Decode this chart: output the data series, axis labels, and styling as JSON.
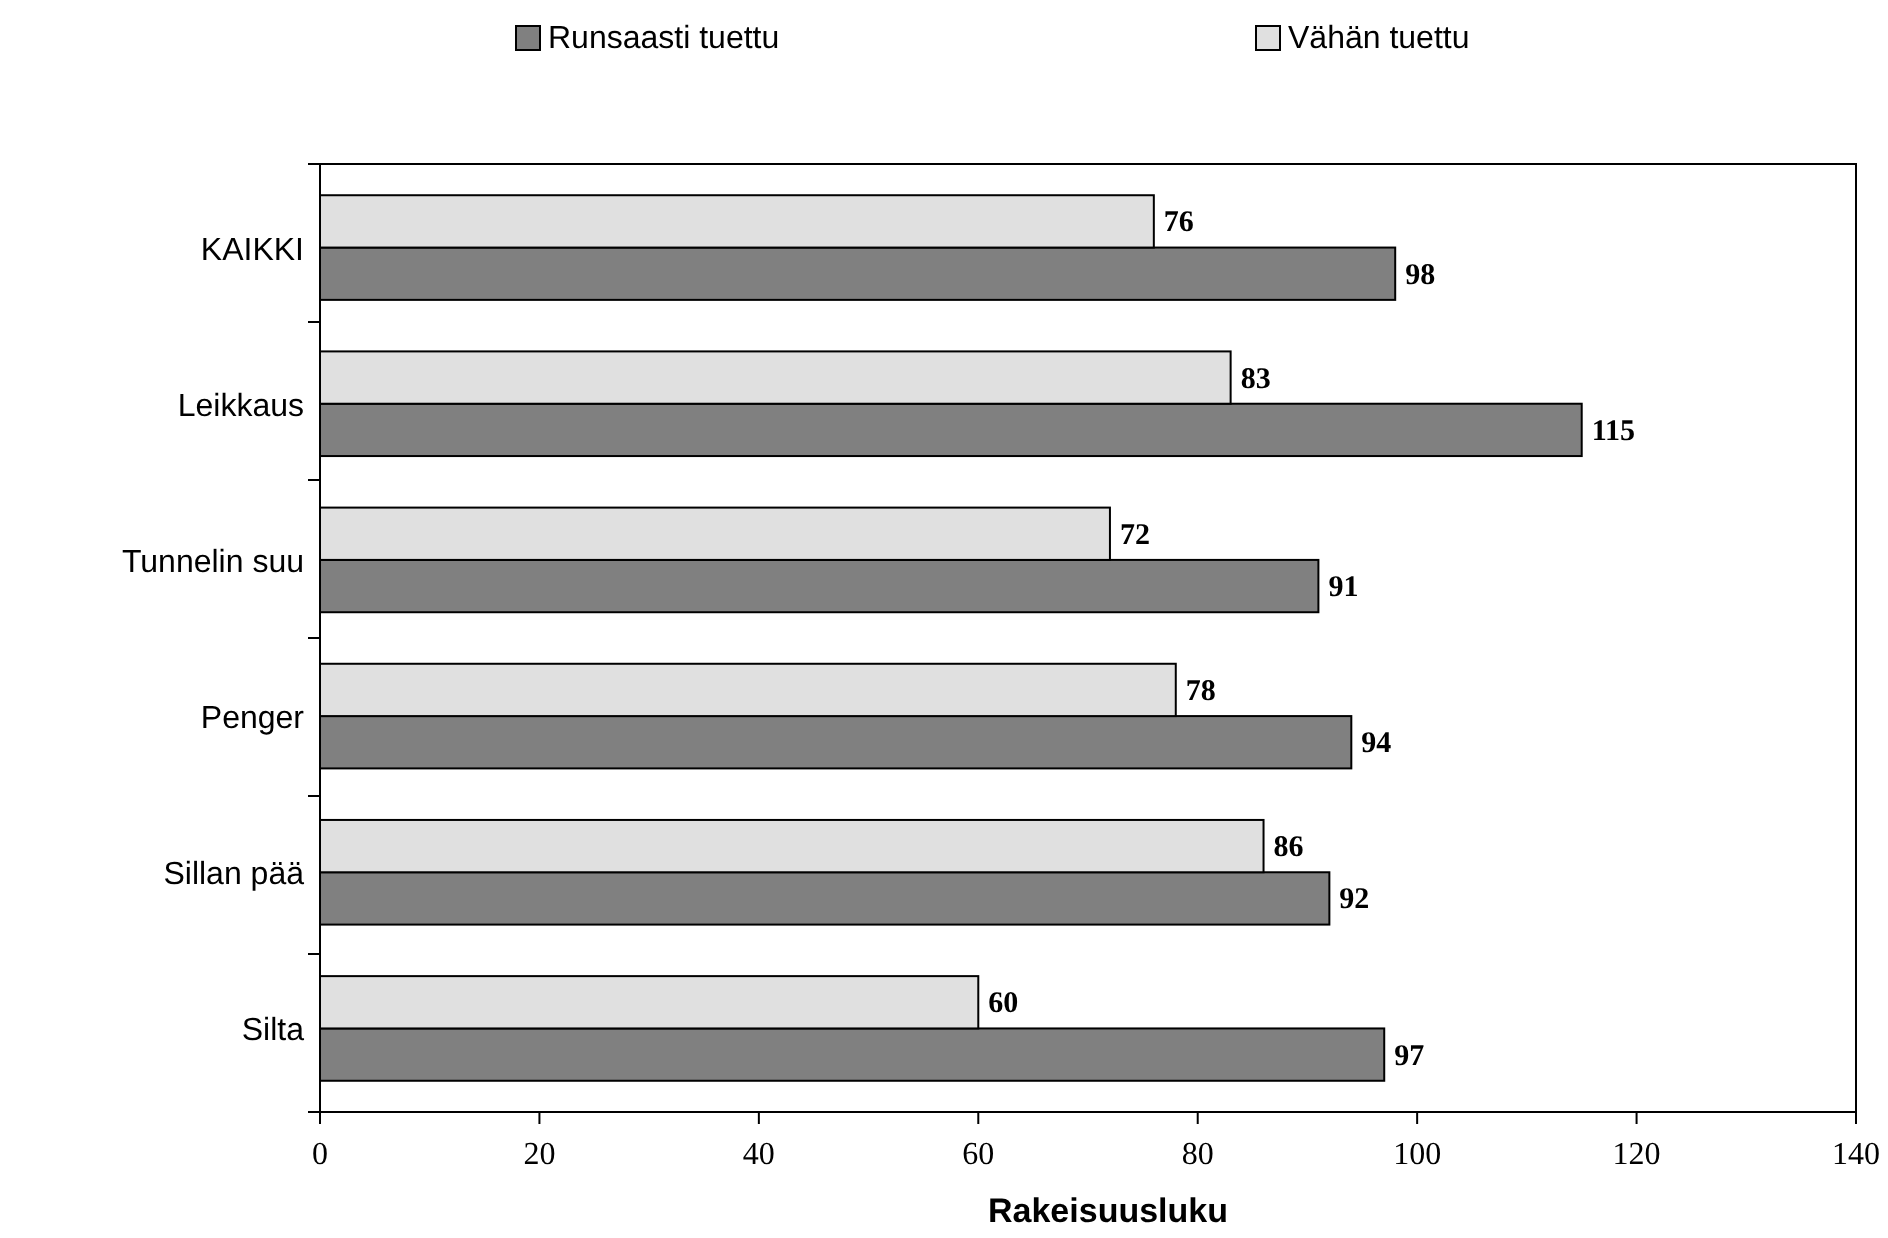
{
  "chart_data": {
    "type": "bar",
    "orientation": "horizontal",
    "xlabel": "Rakeisuusluku",
    "categories": [
      "KAIKKI",
      "Leikkaus",
      "Tunnelin suu",
      "Penger",
      "Sillan pää",
      "Silta"
    ],
    "series": [
      {
        "name": "Runsaasti tuettu",
        "color": "#808080",
        "values": [
          98,
          115,
          91,
          94,
          92,
          97
        ]
      },
      {
        "name": "Vähän tuettu",
        "color": "#e0e0e0",
        "values": [
          76,
          83,
          72,
          78,
          86,
          60
        ]
      }
    ],
    "xlim": [
      0,
      140
    ],
    "xticks": [
      0,
      20,
      40,
      60,
      80,
      100,
      120,
      140
    ],
    "data_labels": true,
    "legend": "top",
    "grid": false
  }
}
